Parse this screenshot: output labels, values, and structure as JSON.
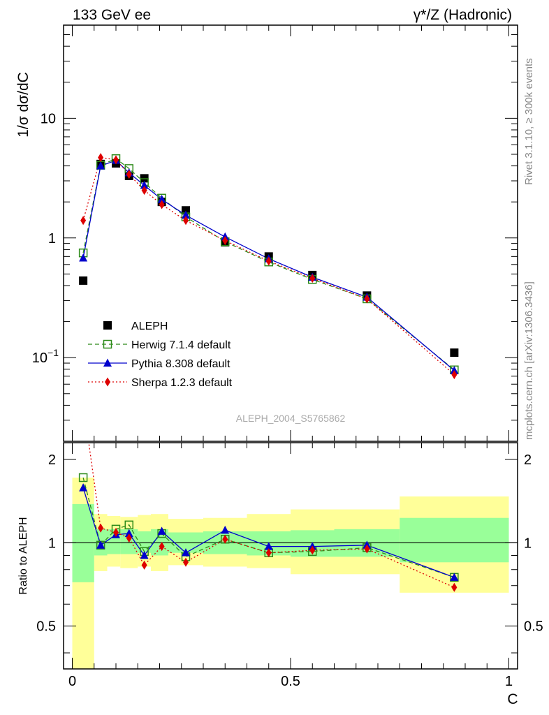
{
  "header": {
    "left": "133 GeV ee",
    "right": "γ*/Z (Hadronic)"
  },
  "side_labels": {
    "rivet": "Rivet 3.1.10, ≥ 300k events",
    "mcplots": "mcplots.cern.ch [arXiv:1306.3436]"
  },
  "watermark": "ALEPH_2004_S5765862",
  "chart_data": [
    {
      "type": "scatter",
      "panel": "main",
      "ylabel": "1/σ  dσ/dC",
      "yscale": "log",
      "ylim": [
        0.02,
        60
      ],
      "xlim": [
        -0.02,
        1.02
      ],
      "yticks": [
        {
          "value": 0.1,
          "base": "10",
          "exp": "−1"
        },
        {
          "value": 1,
          "base": "1",
          "exp": ""
        },
        {
          "value": 10,
          "base": "10",
          "exp": ""
        }
      ],
      "legend_position": "bottom-left",
      "x": [
        0.025,
        0.065,
        0.1,
        0.13,
        0.165,
        0.205,
        0.26,
        0.35,
        0.45,
        0.55,
        0.675,
        0.875
      ],
      "series": [
        {
          "name": "ALEPH",
          "color": "#000000",
          "marker": "square",
          "line": "none",
          "values": [
            0.44,
            4.15,
            4.2,
            3.3,
            3.15,
            2.0,
            1.7,
            0.92,
            0.7,
            0.49,
            0.33,
            0.11
          ]
        },
        {
          "name": "Herwig 7.1.4 default",
          "color": "#2e8b1a",
          "marker": "open-square",
          "line": "dashed",
          "values": [
            0.75,
            4.05,
            4.6,
            3.8,
            2.9,
            2.15,
            1.5,
            0.93,
            0.63,
            0.45,
            0.31,
            0.079
          ]
        },
        {
          "name": "Pythia 8.308 default",
          "color": "#0000cc",
          "marker": "triangle",
          "line": "solid",
          "values": [
            0.68,
            4.0,
            4.45,
            3.5,
            2.75,
            2.1,
            1.55,
            1.02,
            0.67,
            0.47,
            0.32,
            0.078
          ]
        },
        {
          "name": "Sherpa 1.2.3 default",
          "color": "#dd0000",
          "marker": "diamond",
          "line": "dotted",
          "values": [
            1.4,
            4.7,
            4.5,
            3.4,
            2.5,
            1.9,
            1.4,
            0.95,
            0.64,
            0.46,
            0.31,
            0.072
          ]
        }
      ]
    },
    {
      "type": "line",
      "panel": "ratio",
      "xlabel": "C",
      "ylabel": "Ratio to ALEPH",
      "ylim": [
        0.35,
        2.3
      ],
      "xlim": [
        -0.02,
        1.02
      ],
      "xticks": [
        0,
        0.5,
        1
      ],
      "xtick_labels": [
        "0",
        "0.5",
        "1"
      ],
      "yticks": [
        0.5,
        1,
        2
      ],
      "ytick_labels": [
        "0.5",
        "1",
        "2"
      ],
      "bins": [
        [
          0,
          0.05
        ],
        [
          0.05,
          0.08
        ],
        [
          0.08,
          0.11
        ],
        [
          0.11,
          0.15
        ],
        [
          0.15,
          0.18
        ],
        [
          0.18,
          0.22
        ],
        [
          0.22,
          0.3
        ],
        [
          0.3,
          0.4
        ],
        [
          0.4,
          0.5
        ],
        [
          0.5,
          0.6
        ],
        [
          0.6,
          0.75
        ],
        [
          0.75,
          1.0
        ]
      ],
      "band_inner": [
        [
          0.72,
          1.38
        ],
        [
          0.9,
          1.12
        ],
        [
          0.91,
          1.12
        ],
        [
          0.91,
          1.12
        ],
        [
          0.92,
          1.1
        ],
        [
          0.9,
          1.12
        ],
        [
          0.92,
          1.09
        ],
        [
          0.91,
          1.1
        ],
        [
          0.9,
          1.1
        ],
        [
          0.89,
          1.11
        ],
        [
          0.89,
          1.12
        ],
        [
          0.85,
          1.23
        ]
      ],
      "band_outer": [
        [
          0.35,
          1.72
        ],
        [
          0.79,
          1.27
        ],
        [
          0.82,
          1.25
        ],
        [
          0.81,
          1.24
        ],
        [
          0.82,
          1.26
        ],
        [
          0.79,
          1.27
        ],
        [
          0.83,
          1.22
        ],
        [
          0.82,
          1.23
        ],
        [
          0.81,
          1.27
        ],
        [
          0.77,
          1.32
        ],
        [
          0.77,
          1.32
        ],
        [
          0.66,
          1.47
        ]
      ],
      "x": [
        0.025,
        0.065,
        0.1,
        0.13,
        0.165,
        0.205,
        0.26,
        0.35,
        0.45,
        0.55,
        0.675,
        0.875
      ],
      "series": [
        {
          "name": "Herwig 7.1.4 default",
          "color": "#2e8b1a",
          "marker": "open-square",
          "line": "dashed",
          "values": [
            1.72,
            0.98,
            1.12,
            1.16,
            0.93,
            1.08,
            0.89,
            1.03,
            0.92,
            0.93,
            0.96,
            0.75
          ]
        },
        {
          "name": "Pythia 8.308 default",
          "color": "#0000cc",
          "marker": "triangle",
          "line": "solid",
          "values": [
            1.58,
            0.98,
            1.07,
            1.08,
            0.9,
            1.1,
            0.92,
            1.11,
            0.97,
            0.97,
            0.98,
            0.75
          ]
        },
        {
          "name": "Sherpa 1.2.3 default",
          "color": "#dd0000",
          "marker": "diamond",
          "line": "dotted",
          "values": [
            3.2,
            1.13,
            1.09,
            1.04,
            0.83,
            0.97,
            0.85,
            1.03,
            0.92,
            0.94,
            0.95,
            0.69
          ]
        }
      ]
    }
  ]
}
